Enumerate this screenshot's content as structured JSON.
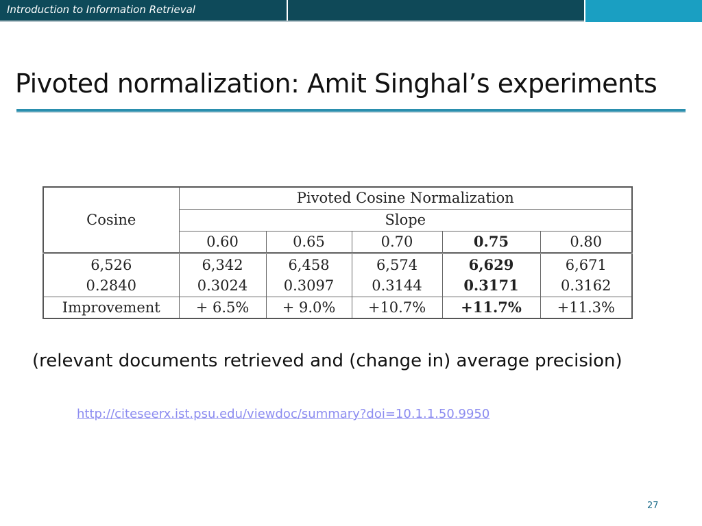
{
  "header": {
    "course_title": "Introduction to Information Retrieval"
  },
  "slide": {
    "title": "Pivoted normalization: Amit Singhal’s experiments"
  },
  "table": {
    "row_header": "Cosine",
    "group_header": "Pivoted Cosine Normalization",
    "subgroup_header": "Slope",
    "slopes": [
      "0.60",
      "0.65",
      "0.70",
      "0.75",
      "0.80"
    ],
    "cosine_values": [
      "6,526",
      "0.2840"
    ],
    "relevant_docs": [
      "6,342",
      "6,458",
      "6,574",
      "6,629",
      "6,671"
    ],
    "avg_precision": [
      "0.3024",
      "0.3097",
      "0.3144",
      "0.3171",
      "0.3162"
    ],
    "improvement_label": "Improvement",
    "improvements": [
      "+ 6.5%",
      "+ 9.0%",
      "+10.7%",
      "+11.7%",
      "+11.3%"
    ],
    "bold_column_index": 3
  },
  "caption": "(relevant documents retrieved and (change in) average precision)",
  "source_link": "http://citeseerx.ist.psu.edu/viewdoc/summary?doi=10.1.1.50.9950",
  "page_number": "27",
  "colors": {
    "header_dark": "#0e4a5a",
    "header_accent": "#1a9fc2",
    "title_rule": "#2a8fae",
    "link": "#8c8cf0"
  }
}
